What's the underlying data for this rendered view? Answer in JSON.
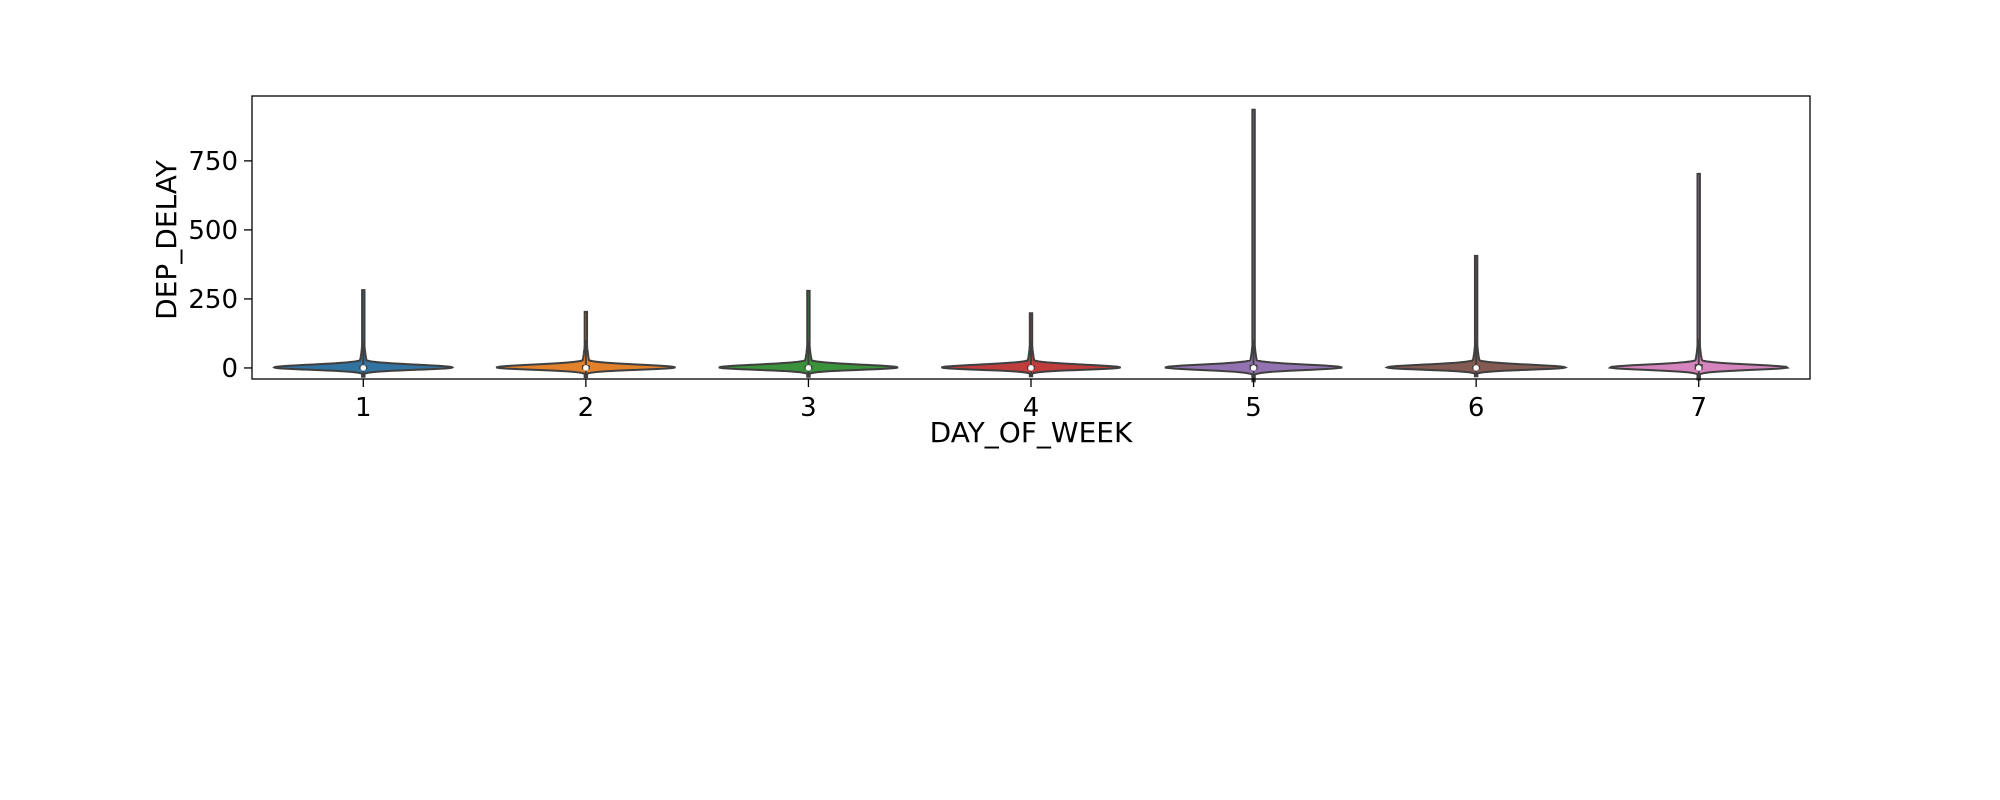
{
  "chart_data": {
    "type": "violin",
    "xlabel": "DAY_OF_WEEK",
    "ylabel": "DEP_DELAY",
    "ylim": [
      -40,
      985
    ],
    "yticks": [
      0,
      250,
      500,
      750
    ],
    "categories": [
      "1",
      "2",
      "3",
      "4",
      "5",
      "6",
      "7"
    ],
    "grid": false,
    "legend": "none",
    "series": [
      {
        "category": "1",
        "color": "#3274a1",
        "min": -32,
        "q1": -5,
        "median": 0,
        "q3": 8,
        "max": 282
      },
      {
        "category": "2",
        "color": "#e1812c",
        "min": -33,
        "q1": -5,
        "median": 0,
        "q3": 10,
        "max": 203
      },
      {
        "category": "3",
        "color": "#3a923a",
        "min": -32,
        "q1": -5,
        "median": 0,
        "q3": 8,
        "max": 279
      },
      {
        "category": "4",
        "color": "#c03d3e",
        "min": -30,
        "q1": -5,
        "median": 0,
        "q3": 8,
        "max": 198
      },
      {
        "category": "5",
        "color": "#9372b2",
        "min": -48,
        "q1": -6,
        "median": 0,
        "q3": 12,
        "max": 935
      },
      {
        "category": "6",
        "color": "#845b53",
        "min": -30,
        "q1": -5,
        "median": 0,
        "q3": 8,
        "max": 406
      },
      {
        "category": "7",
        "color": "#d684bd",
        "min": -42,
        "q1": -6,
        "median": 0,
        "q3": 14,
        "max": 703
      }
    ]
  }
}
